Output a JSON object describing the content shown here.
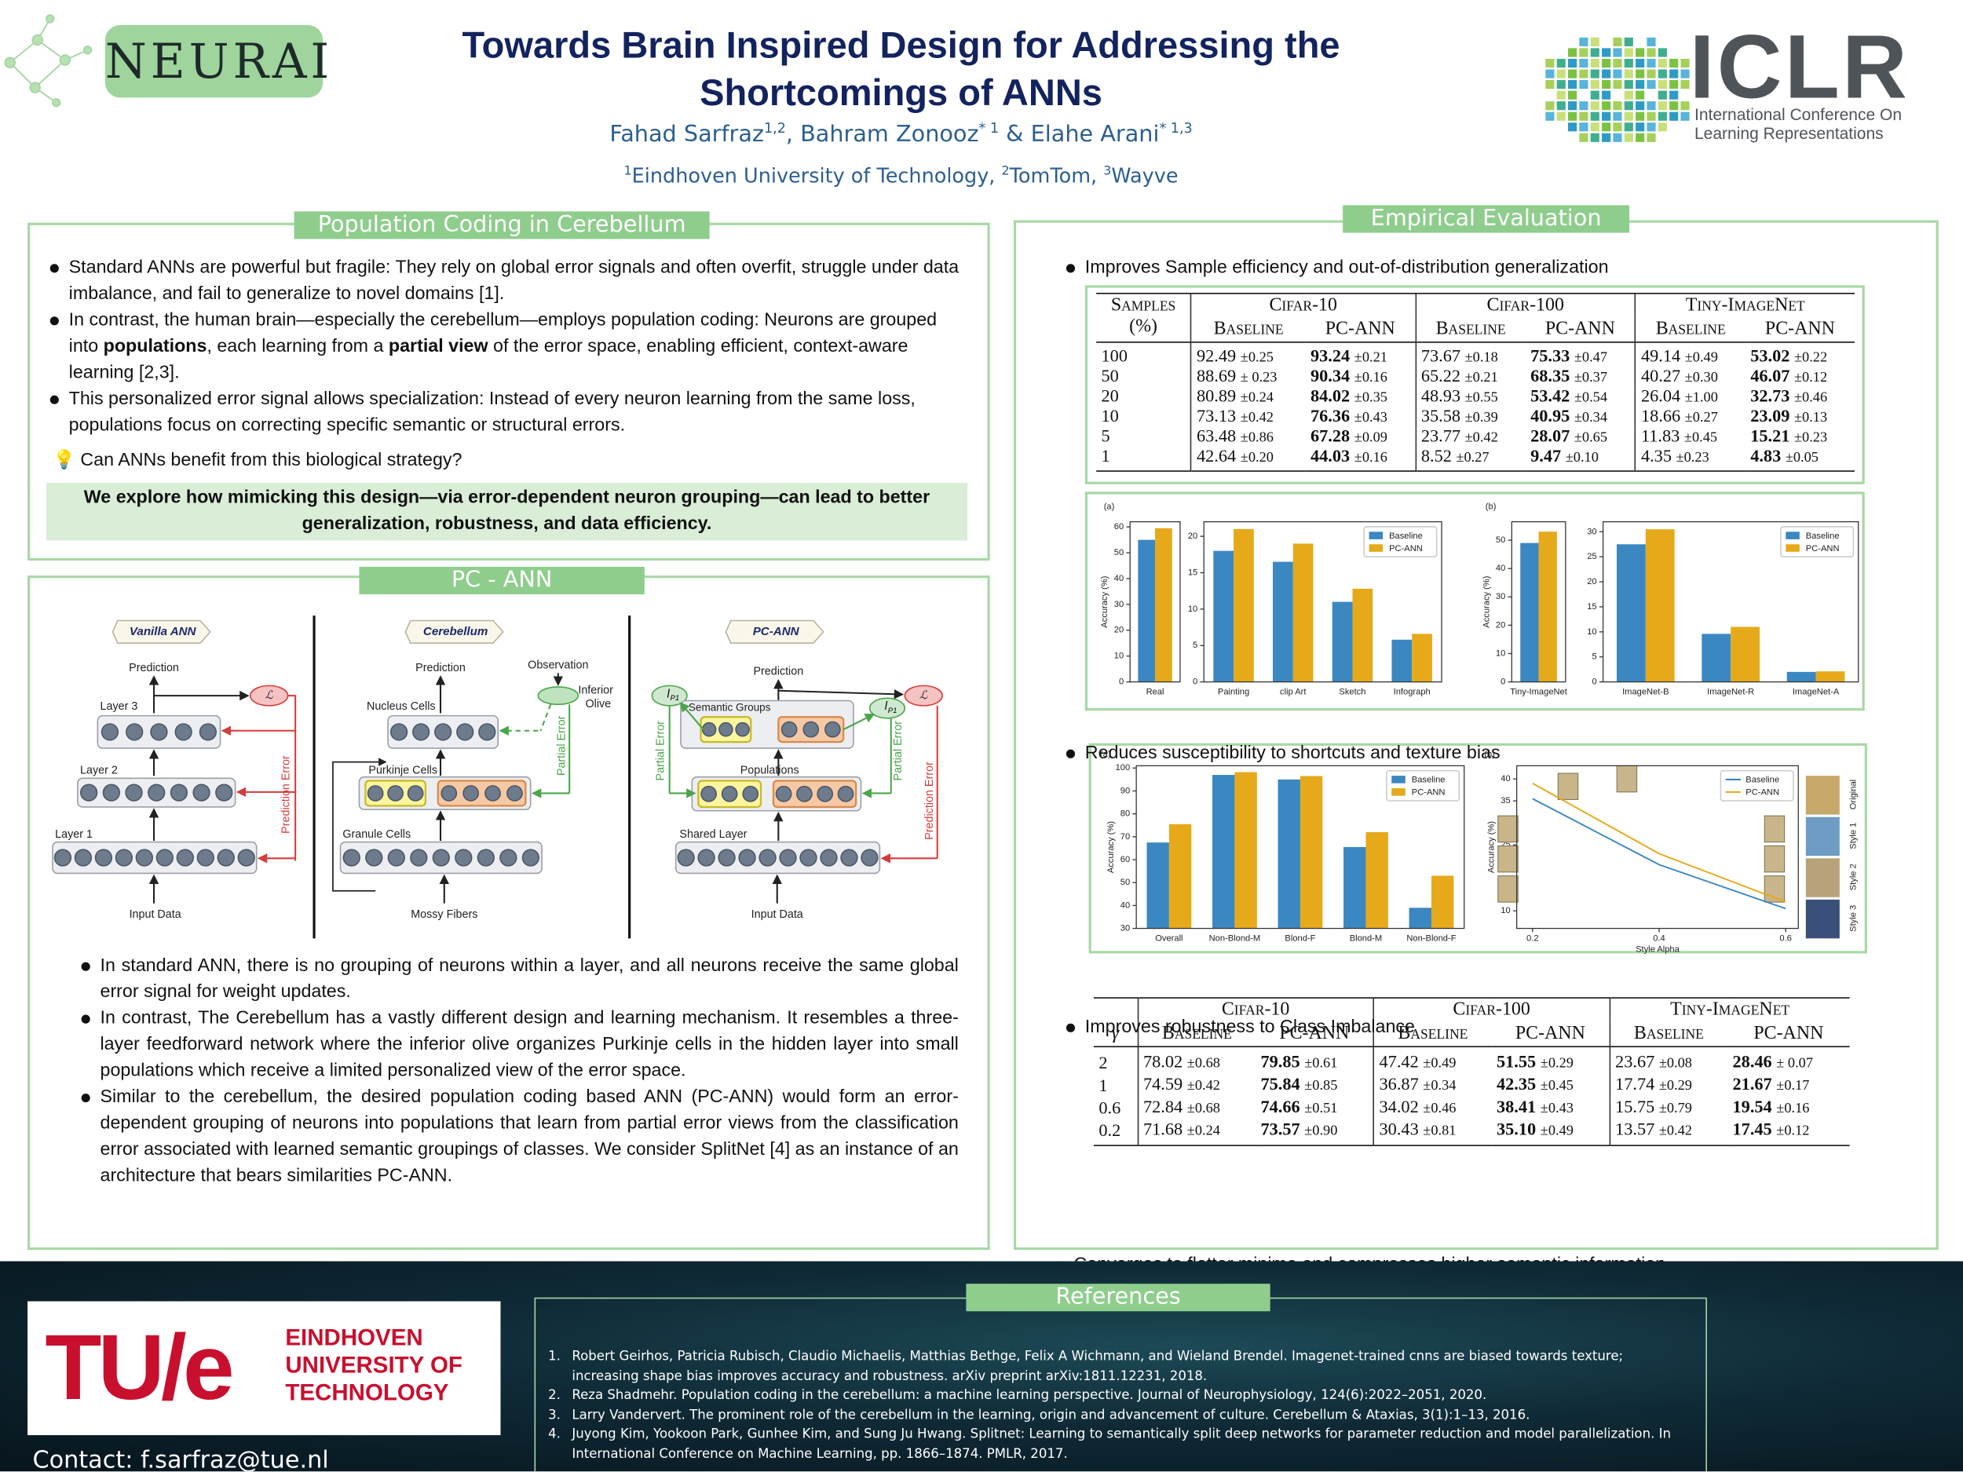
{
  "header": {
    "logo": "NEURAI",
    "title": [
      "Towards Brain Inspired Design for Addressing the",
      "Shortcomings of ANNs"
    ],
    "authors": [
      {
        "name": "Fahad Sarfraz",
        "sup": "1,2"
      },
      {
        "name": ", Bahram Zonooz",
        "sup": "* 1"
      },
      {
        "name": " & Elahe Arani",
        "sup": "* 1,3"
      }
    ],
    "affiliations": [
      {
        "sup": "1",
        "name": "Eindhoven University of Technology, "
      },
      {
        "sup": "2",
        "name": "TomTom, "
      },
      {
        "sup": "3",
        "name": "Wayve"
      }
    ],
    "iclr": {
      "name": "ICLR",
      "line1": "International Conference On",
      "line2": "Learning Representations"
    }
  },
  "population": {
    "title": "Population Coding in Cerebellum",
    "bullets": [
      [
        "Standard ANNs are powerful but fragile: They rely on global error signals and often overfit, struggle under data imbalance, and fail to generalize to novel domains [1]."
      ],
      [
        "In contrast, the human brain—especially the cerebellum—employs population coding: Neurons are grouped into ",
        "populations",
        ", each learning from a ",
        "partial view",
        " of the error space, enabling efficient, context-aware learning [2,3]."
      ],
      [
        "This personalized error signal allows specialization: Instead of every neuron learning from the same loss, populations focus on correcting specific semantic or structural errors."
      ]
    ],
    "question": "💡 Can ANNs benefit from this biological strategy?",
    "highlight": "We explore how mimicking this design—via error-dependent neuron grouping—can lead to better generalization, robustness, and data efficiency."
  },
  "pcann": {
    "title": "PC - ANN",
    "diagram": {
      "vanilla": {
        "tag": "Vanilla ANN",
        "prediction": "Prediction",
        "layers": [
          "Layer 3",
          "Layer 2",
          "Layer 1"
        ],
        "input": "Input Data",
        "loss": "ℒ",
        "error": "Prediction Error"
      },
      "cerebellum": {
        "tag": "Cerebellum",
        "prediction": "Prediction",
        "observation": "Observation",
        "olive": [
          "Inferior",
          "Olive"
        ],
        "layers": [
          "Nucleus Cells",
          "Purkinje Cells",
          "Granule Cells"
        ],
        "input": "Mossy Fibers",
        "error": "Partial Error"
      },
      "pc": {
        "tag": "PC-ANN",
        "prediction": "Prediction",
        "layers": [
          "Semantic Groups",
          "Populations",
          "Shared Layer"
        ],
        "input": "Input Data",
        "loss": "ℒ",
        "partial_loss": [
          "l",
          "P1"
        ],
        "partial_error": "Partial Error",
        "error": "Prediction Error"
      }
    },
    "bullets": [
      "In standard ANN, there is no grouping of neurons within a layer, and all neurons receive the same global error signal for weight updates.",
      "In contrast, The Cerebellum has a vastly different design and learning mechanism. It resembles a three-layer feedforward network where the inferior olive organizes Purkinje cells in the hidden layer into small populations which receive a limited personalized view of the error space.",
      "Similar to the cerebellum, the desired population coding based ANN (PC-ANN) would form an error-dependent grouping of neurons into populations that learn from partial error views from the classification error associated with learned semantic groupings of classes. We consider SplitNet [4] as an instance of an architecture that bears similarities PC-ANN."
    ]
  },
  "empirical": {
    "title": "Empirical Evaluation",
    "bullets": [
      "Improves Sample efficiency and out-of-distribution generalization",
      "Reduces susceptibility to shortcuts and texture bias",
      "Improves robustness to Class Imbalance",
      "Converges to flatter minima and compresses higher semantic information."
    ],
    "table1": {
      "corner": [
        "Samples",
        "(%)"
      ],
      "groups": [
        "Cifar-10",
        "Cifar-100",
        "Tiny-ImageNet"
      ],
      "columns": [
        "Baseline",
        "PC-ANN"
      ],
      "rows": [
        {
          "label": "100",
          "cells": [
            [
              "92.49",
              "±0.25"
            ],
            [
              "93.24",
              "±0.21"
            ],
            [
              "73.67",
              "±0.18"
            ],
            [
              "75.33",
              "±0.47"
            ],
            [
              "49.14",
              "±0.49"
            ],
            [
              "53.02",
              "±0.22"
            ]
          ]
        },
        {
          "label": "50",
          "cells": [
            [
              "88.69",
              "± 0.23"
            ],
            [
              "90.34",
              "±0.16"
            ],
            [
              "65.22",
              "±0.21"
            ],
            [
              "68.35",
              "±0.37"
            ],
            [
              "40.27",
              "±0.30"
            ],
            [
              "46.07",
              "±0.12"
            ]
          ]
        },
        {
          "label": "20",
          "cells": [
            [
              "80.89",
              "±0.24"
            ],
            [
              "84.02",
              "±0.35"
            ],
            [
              "48.93",
              "±0.55"
            ],
            [
              "53.42",
              "±0.54"
            ],
            [
              "26.04",
              "±1.00"
            ],
            [
              "32.73",
              "±0.46"
            ]
          ]
        },
        {
          "label": "10",
          "cells": [
            [
              "73.13",
              "±0.42"
            ],
            [
              "76.36",
              "±0.43"
            ],
            [
              "35.58",
              "±0.39"
            ],
            [
              "40.95",
              "±0.34"
            ],
            [
              "18.66",
              "±0.27"
            ],
            [
              "23.09",
              "±0.13"
            ]
          ]
        },
        {
          "label": "5",
          "cells": [
            [
              "63.48",
              "±0.86"
            ],
            [
              "67.28",
              "±0.09"
            ],
            [
              "23.77",
              "±0.42"
            ],
            [
              "28.07",
              "±0.65"
            ],
            [
              "11.83",
              "±0.45"
            ],
            [
              "15.21",
              "±0.23"
            ]
          ]
        },
        {
          "label": "1",
          "cells": [
            [
              "42.64",
              "±0.20"
            ],
            [
              "44.03",
              "±0.16"
            ],
            [
              "8.52",
              "±0.27"
            ],
            [
              "9.47",
              "±0.10"
            ],
            [
              "4.35",
              "±0.23"
            ],
            [
              "4.83",
              "±0.05"
            ]
          ]
        }
      ]
    },
    "table2": {
      "corner": "γ",
      "groups": [
        "Cifar-10",
        "Cifar-100",
        "Tiny-ImageNet"
      ],
      "columns": [
        "Baseline",
        "PC-ANN"
      ],
      "rows": [
        {
          "label": "2",
          "cells": [
            [
              "78.02",
              "±0.68"
            ],
            [
              "79.85",
              "±0.61"
            ],
            [
              "47.42",
              "±0.49"
            ],
            [
              "51.55",
              "±0.29"
            ],
            [
              "23.67",
              "±0.08"
            ],
            [
              "28.46",
              "± 0.07"
            ]
          ]
        },
        {
          "label": "1",
          "cells": [
            [
              "74.59",
              "±0.42"
            ],
            [
              "75.84",
              "±0.85"
            ],
            [
              "36.87",
              "±0.34"
            ],
            [
              "42.35",
              "±0.45"
            ],
            [
              "17.74",
              "±0.29"
            ],
            [
              "21.67",
              "±0.17"
            ]
          ]
        },
        {
          "label": "0.6",
          "cells": [
            [
              "72.84",
              "±0.68"
            ],
            [
              "74.66",
              "±0.51"
            ],
            [
              "34.02",
              "±0.46"
            ],
            [
              "38.41",
              "±0.43"
            ],
            [
              "15.75",
              "±0.79"
            ],
            [
              "19.54",
              "±0.16"
            ]
          ]
        },
        {
          "label": "0.2",
          "cells": [
            [
              "71.68",
              "±0.24"
            ],
            [
              "73.57",
              "±0.90"
            ],
            [
              "30.43",
              "±0.81"
            ],
            [
              "35.10",
              "±0.49"
            ],
            [
              "13.57",
              "±0.42"
            ],
            [
              "17.45",
              "±0.12"
            ]
          ]
        }
      ]
    },
    "figures": [
      {
        "type": "bar",
        "panel": "(a)",
        "ylabel": "Accuracy (%)",
        "series": [
          {
            "name": "Baseline",
            "color": "#3b87c2"
          },
          {
            "name": "PC-ANN",
            "color": "#e5a91a"
          }
        ],
        "subplots": [
          {
            "categories": [
              "Real"
            ],
            "values": [
              [
                55
              ],
              [
                59.5
              ]
            ],
            "ylim": [
              0,
              62
            ],
            "yticks": [
              0,
              10,
              20,
              30,
              40,
              50,
              60
            ]
          },
          {
            "categories": [
              "Painting",
              "clip Art",
              "Sketch",
              "Infograph"
            ],
            "values": [
              [
                18,
                16.5,
                11,
                5.8
              ],
              [
                21,
                19,
                12.8,
                6.6
              ]
            ],
            "ylim": [
              0,
              22
            ],
            "yticks": [
              0,
              5,
              10,
              15,
              20
            ],
            "legend": "upper right"
          }
        ]
      },
      {
        "type": "bar",
        "panel": "(b)",
        "ylabel": "Accuracy (%)",
        "series": [
          {
            "name": "Baseline",
            "color": "#3b87c2"
          },
          {
            "name": "PC-ANN",
            "color": "#e5a91a"
          }
        ],
        "subplots": [
          {
            "categories": [
              "Tiny-ImageNet"
            ],
            "values": [
              [
                49
              ],
              [
                53
              ]
            ],
            "ylim": [
              0,
              56.5
            ],
            "yticks": [
              0,
              10,
              20,
              30,
              40,
              50
            ]
          },
          {
            "categories": [
              "ImageNet-B",
              "ImageNet-R",
              "ImageNet-A"
            ],
            "values": [
              [
                27.5,
                9.6,
                2
              ],
              [
                30.5,
                11,
                2.1
              ]
            ],
            "ylim": [
              0,
              32
            ],
            "yticks": [
              0,
              5,
              10,
              15,
              20,
              25,
              30
            ],
            "legend": "upper right"
          }
        ]
      },
      {
        "type": "bar",
        "panel": "(a)",
        "ylabel": "Accuracy (%)",
        "series": [
          {
            "name": "Baseline",
            "color": "#3b87c2"
          },
          {
            "name": "PC-ANN",
            "color": "#e5a91a"
          }
        ],
        "subplots": [
          {
            "categories": [
              "Overall",
              "Non-Blond-M",
              "Blond-F",
              "Blond-M",
              "Non-Blond-F"
            ],
            "values": [
              [
                67.5,
                97,
                95,
                65.5,
                39
              ],
              [
                75.5,
                98.2,
                96.5,
                72,
                53
              ]
            ],
            "ylim": [
              30,
              101
            ],
            "yticks": [
              30,
              40,
              50,
              60,
              70,
              80,
              90,
              100
            ],
            "legend": "upper right"
          }
        ]
      },
      {
        "type": "line",
        "panel": "(b)",
        "ylabel": "Accuracy (%)",
        "xlabel": "Style Alpha",
        "x": [
          0.2,
          0.4,
          0.6
        ],
        "xlim": [
          0.175,
          0.62
        ],
        "xticks": [
          0.2,
          0.4,
          0.6
        ],
        "ylim": [
          6,
          43
        ],
        "yticks": [
          10,
          15,
          20,
          25,
          30,
          35,
          40
        ],
        "series": [
          {
            "name": "Baseline",
            "color": "#3b87c2",
            "values": [
              35.5,
              20.5,
              10.5
            ]
          },
          {
            "name": "PC-ANN",
            "color": "#e5a91a",
            "values": [
              39,
              23,
              12
            ]
          }
        ],
        "legend": "upper right",
        "side_labels": [
          "Original",
          "Style 1",
          "Style 2",
          "Style 3"
        ]
      }
    ]
  },
  "references": {
    "title": "References",
    "items": [
      {
        "n": "1.",
        "text": "Robert Geirhos, Patricia Rubisch, Claudio Michaelis, Matthias Bethge, Felix A Wichmann, and Wieland Brendel. Imagenet-trained cnns are biased towards texture; increasing shape bias improves accuracy and robustness. arXiv preprint arXiv:1811.12231, 2018."
      },
      {
        "n": "2.",
        "text": "Reza Shadmehr. Population coding in the cerebellum: a machine learning perspective. Journal of Neurophysiology, 124(6):2022–2051, 2020."
      },
      {
        "n": "3.",
        "text": "Larry Vandervert. The prominent role of the cerebellum in the learning, origin and advancement of culture. Cerebellum & Ataxias, 3(1):1–13, 2016."
      },
      {
        "n": "4.",
        "text": "Juyong Kim, Yookoon Park, Gunhee Kim, and Sung Ju Hwang. Splitnet: Learning to semantically split deep networks for parameter reduction and model parallelization. In International Conference on Machine Learning, pp. 1866–1874. PMLR, 2017."
      }
    ]
  },
  "footer": {
    "tue": {
      "mark": "TU/e",
      "lines": [
        "EINDHOVEN",
        "UNIVERSITY OF",
        "TECHNOLOGY"
      ]
    },
    "contact": "Contact: f.sarfraz@tue.nl"
  }
}
